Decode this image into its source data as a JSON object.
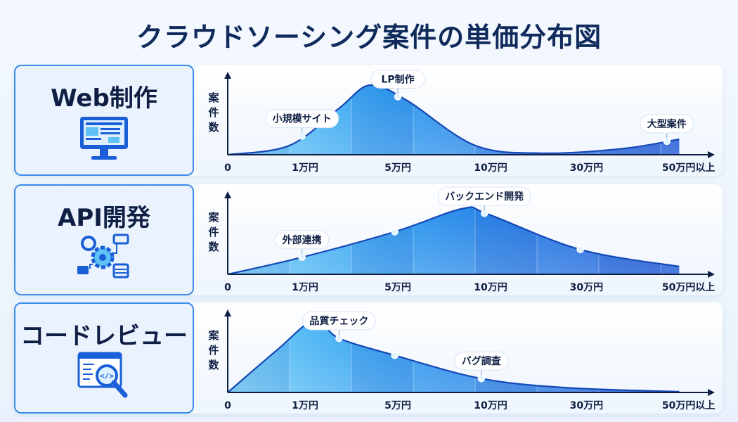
{
  "title": "クラウドソーシング案件の単価分布図",
  "colors": {
    "accent": "#1a5fd8",
    "light": "#5ec2f5",
    "title": "#102a5c"
  },
  "y_axis_label": [
    "案",
    "件",
    "数"
  ],
  "chart_data": [
    {
      "type": "area",
      "category": "Web制作",
      "icon": "monitor-icon",
      "ylabel": "案件数",
      "xticks": [
        "0",
        "1万円",
        "5万円",
        "10万円",
        "30万円",
        "50万円以上"
      ],
      "curve": [
        [
          0,
          0
        ],
        [
          1,
          12
        ],
        [
          1.8,
          60
        ],
        [
          2.3,
          90
        ],
        [
          2.9,
          70
        ],
        [
          4,
          12
        ],
        [
          5.1,
          2
        ],
        [
          6.4,
          8
        ],
        [
          7.3,
          20
        ]
      ],
      "annotations": [
        {
          "label": "小規模サイト",
          "x": 1.2
        },
        {
          "label": "LP制作",
          "x": 2.75
        },
        {
          "label": "大型案件",
          "x": 7.1
        }
      ]
    },
    {
      "type": "area",
      "category": "API開発",
      "icon": "gear-network-icon",
      "ylabel": "案件数",
      "xticks": [
        "0",
        "1万円",
        "5万円",
        "10万円",
        "30万円",
        "50万円以上"
      ],
      "curve": [
        [
          0,
          0
        ],
        [
          1.2,
          22
        ],
        [
          2.7,
          55
        ],
        [
          3.8,
          85
        ],
        [
          4.2,
          78
        ],
        [
          5.7,
          32
        ],
        [
          7.3,
          10
        ]
      ],
      "annotations": [
        {
          "label": "外部連携",
          "x": 1.2
        },
        {
          "label": "バックエンド開発",
          "x": 4.15
        },
        {
          "label": "",
          "x": 2.7
        },
        {
          "label": "",
          "x": 5.7
        }
      ]
    },
    {
      "type": "area",
      "category": "コードレビュー",
      "icon": "code-review-icon",
      "ylabel": "案件数",
      "xticks": [
        "0",
        "1万円",
        "5万円",
        "10万円",
        "30万円",
        "50万円以上"
      ],
      "curve": [
        [
          0,
          0
        ],
        [
          0.8,
          55
        ],
        [
          1.4,
          93
        ],
        [
          1.8,
          70
        ],
        [
          2.7,
          48
        ],
        [
          4.1,
          18
        ],
        [
          5.5,
          6
        ],
        [
          7.3,
          1
        ]
      ],
      "annotations": [
        {
          "label": "品質チェック",
          "x": 1.8
        },
        {
          "label": "",
          "x": 2.7
        },
        {
          "label": "バグ調査",
          "x": 4.1
        }
      ]
    }
  ]
}
